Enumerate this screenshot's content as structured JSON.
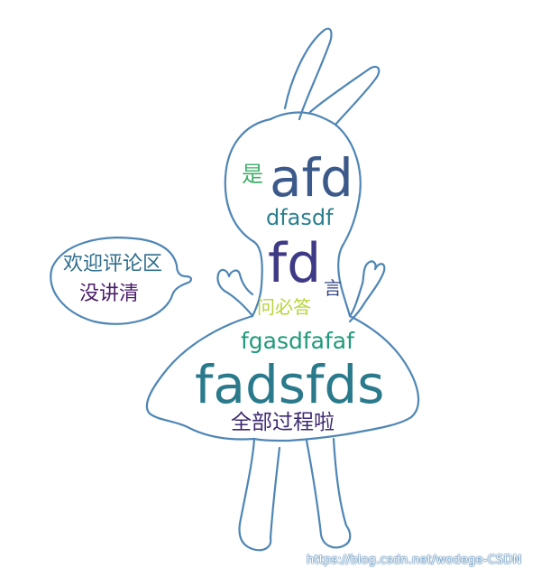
{
  "words": [
    {
      "key": "w-afd",
      "text": "afd",
      "color": "#3b5a8a"
    },
    {
      "key": "w-shi",
      "text": "是",
      "color": "#3fae6a"
    },
    {
      "key": "w-dfasdf",
      "text": "dfasdf",
      "color": "#2b7f8f"
    },
    {
      "key": "w-fd",
      "text": "fd",
      "color": "#3e3a86"
    },
    {
      "key": "w-huanying",
      "text": "欢迎评论区",
      "color": "#2e6d8c"
    },
    {
      "key": "w-mei",
      "text": "没讲清",
      "color": "#4a1d6a"
    },
    {
      "key": "w-yan",
      "text": "言",
      "color": "#34477f"
    },
    {
      "key": "w-wenbida",
      "text": "问必答",
      "color": "#b6d43a"
    },
    {
      "key": "w-fgasd",
      "text": "fgasdfafaf",
      "color": "#1f9a7a"
    },
    {
      "key": "w-fadsfds",
      "text": "fadsfds",
      "color": "#2a7a8c"
    },
    {
      "key": "w-quanbu",
      "text": "全部过程啦",
      "color": "#3e2a6f"
    }
  ],
  "watermark": "https://blog.csdn.net/wodege-CSDN",
  "outline_color": "#4f86b5"
}
